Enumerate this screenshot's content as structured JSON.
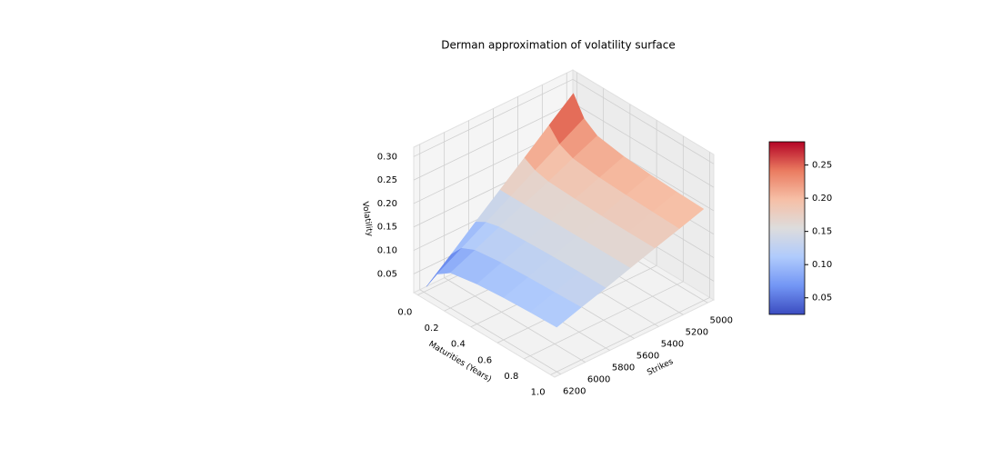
{
  "chart_data": {
    "type": "surface",
    "title": "Derman approximation of volatility surface",
    "xlabel": "Maturities (Years)",
    "ylabel": "Strikes",
    "zlabel": "Volatility",
    "x": [
      0.02,
      0.1,
      0.2,
      0.4,
      0.6,
      0.8,
      1.0
    ],
    "y": [
      5000,
      5200,
      5400,
      5600,
      5800,
      6000,
      6200
    ],
    "z": [
      [
        0.285,
        0.242,
        0.198,
        0.155,
        0.112,
        0.068,
        0.025
      ],
      [
        0.245,
        0.215,
        0.185,
        0.155,
        0.125,
        0.095,
        0.065
      ],
      [
        0.225,
        0.202,
        0.178,
        0.155,
        0.132,
        0.108,
        0.085
      ],
      [
        0.215,
        0.195,
        0.175,
        0.155,
        0.135,
        0.115,
        0.095
      ],
      [
        0.21,
        0.192,
        0.173,
        0.155,
        0.137,
        0.118,
        0.1
      ],
      [
        0.207,
        0.19,
        0.172,
        0.155,
        0.138,
        0.12,
        0.103
      ],
      [
        0.205,
        0.188,
        0.172,
        0.155,
        0.138,
        0.122,
        0.105
      ]
    ],
    "xlim": [
      -0.03,
      1.03
    ],
    "ylim": [
      4950,
      6250
    ],
    "zlim": [
      0.01,
      0.32
    ],
    "xticks": [
      {
        "value": 0,
        "label": "0.0"
      },
      0.2,
      0.4,
      0.6,
      0.8,
      {
        "value": 1,
        "label": "1.0"
      }
    ],
    "yticks": [
      5000,
      5200,
      5400,
      5600,
      5800,
      6000,
      6200
    ],
    "zticks": [
      0.05,
      {
        "value": 0.1,
        "label": "0.10"
      },
      0.15,
      {
        "value": 0.2,
        "label": "0.20"
      },
      0.25,
      {
        "value": 0.3,
        "label": "0.30"
      }
    ],
    "colorscale": [
      "#3b4cc0",
      "#7396f5",
      "#b0cbfc",
      "#dddcdc",
      "#f6bfa6",
      "#ea7b60",
      "#b40426"
    ],
    "clim": [
      0.025,
      0.285
    ],
    "cticks": [
      0.05,
      {
        "value": 0.1,
        "label": "0.10"
      },
      0.15,
      {
        "value": 0.2,
        "label": "0.20"
      },
      0.25
    ],
    "grid": true
  }
}
